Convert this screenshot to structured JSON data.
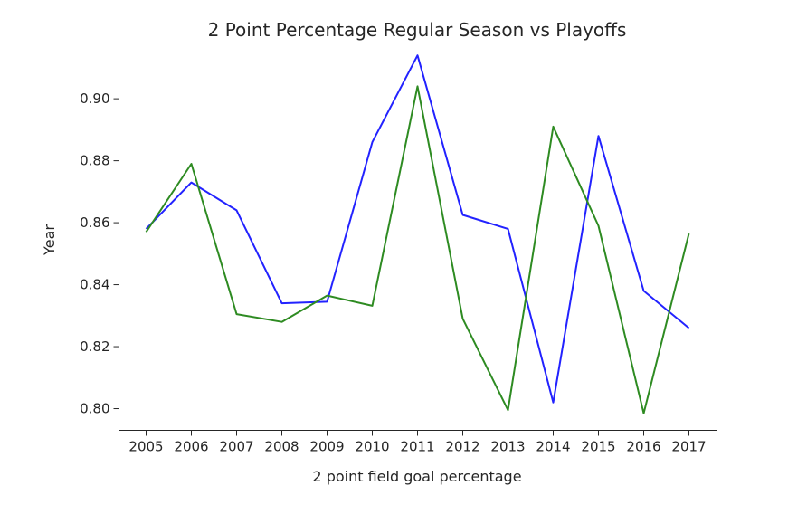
{
  "chart_data": {
    "type": "line",
    "title": "2 Point Percentage Regular Season vs Playoffs",
    "xlabel": "2 point field goal percentage",
    "ylabel": "Year",
    "x": [
      "2005",
      "2006",
      "2007",
      "2008",
      "2009",
      "2010",
      "2011",
      "2012",
      "2013",
      "2014",
      "2015",
      "2016",
      "2017"
    ],
    "ylim": [
      0.793,
      0.918
    ],
    "yticks": [
      0.8,
      0.82,
      0.84,
      0.86,
      0.88,
      0.9
    ],
    "ytick_labels": [
      "0.80",
      "0.82",
      "0.84",
      "0.86",
      "0.88",
      "0.90"
    ],
    "grid": false,
    "series": [
      {
        "color": "#2222ff",
        "values": [
          0.858,
          0.873,
          0.864,
          0.834,
          0.8345,
          0.886,
          0.914,
          0.8625,
          0.858,
          0.802,
          0.888,
          0.838,
          0.826
        ]
      },
      {
        "color": "#2e8b22",
        "values": [
          0.857,
          0.879,
          0.8305,
          0.828,
          0.8365,
          0.8332,
          0.904,
          0.829,
          0.7995,
          0.891,
          0.859,
          0.7985,
          0.8565
        ]
      }
    ]
  }
}
